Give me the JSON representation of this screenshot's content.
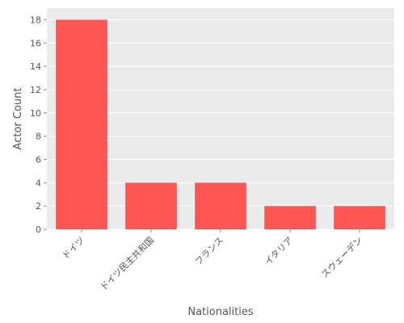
{
  "chart_data": {
    "type": "bar",
    "categories": [
      "ドイツ",
      "ドイツ民主共和国",
      "フランス",
      "イタリア",
      "スウェーデン"
    ],
    "values": [
      18,
      4,
      4,
      2,
      2
    ],
    "xlabel": "Nationalities",
    "ylabel": "Actor Count",
    "ylim": [
      0,
      19
    ],
    "yticks": [
      0,
      2,
      4,
      6,
      8,
      10,
      12,
      14,
      16,
      18
    ],
    "grid": true,
    "colors": {
      "bar": "#ff5555",
      "plot_background": "#ebebeb",
      "grid": "#ffffff",
      "text": "#555555"
    }
  }
}
